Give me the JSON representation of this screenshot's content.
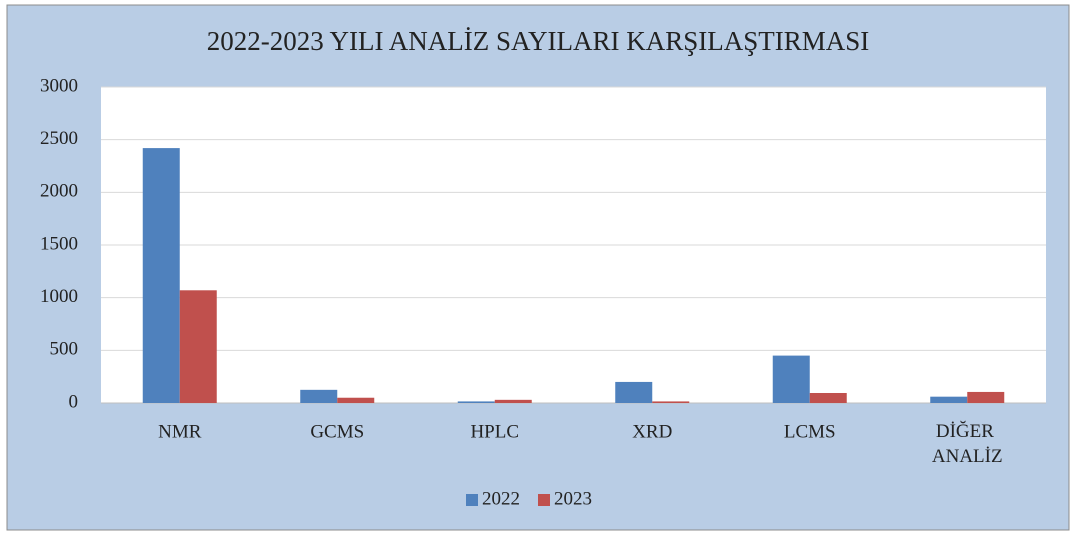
{
  "chart_data": {
    "type": "bar",
    "title": "2022-2023  YILI ANALİZ  SAYILARI KARŞILAŞTIRMASI",
    "categories": [
      "NMR",
      "GCMS",
      "HPLC",
      "XRD",
      "LCMS",
      "DİĞER ANALİZ"
    ],
    "series": [
      {
        "name": "2022",
        "color": "#4f81bd",
        "values": [
          2420,
          125,
          15,
          200,
          450,
          60
        ]
      },
      {
        "name": "2023",
        "color": "#c0504d",
        "values": [
          1070,
          50,
          30,
          15,
          95,
          105
        ]
      }
    ],
    "ylim": [
      0,
      3000
    ],
    "yticks": [
      0,
      500,
      1000,
      1500,
      2000,
      2500,
      3000
    ],
    "grid": true,
    "legend": "bottom"
  }
}
